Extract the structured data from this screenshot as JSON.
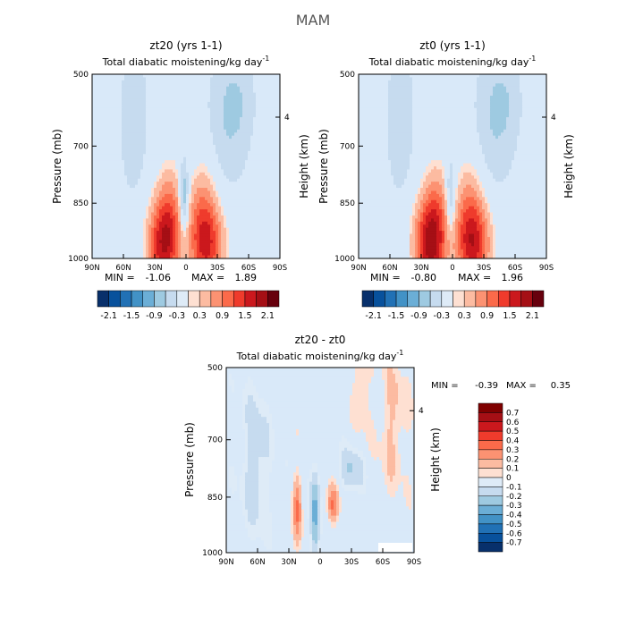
{
  "figure": {
    "title": "MAM",
    "colors": {
      "main_scale": [
        "#08306b",
        "#08519c",
        "#2171b5",
        "#4292c6",
        "#6baed6",
        "#9ecae1",
        "#c6dbef",
        "#deebf7",
        "#fee0d2",
        "#fcbba1",
        "#fc9272",
        "#fb6a4a",
        "#ef3b2c",
        "#cb181d",
        "#a50f15",
        "#67000d"
      ],
      "diff_scale": [
        "#08306b",
        "#08519c",
        "#2171b5",
        "#4292c6",
        "#6baed6",
        "#9ecae1",
        "#c6dbef",
        "#deebf7",
        "#fee0d2",
        "#fcbba1",
        "#fc9272",
        "#fb6a4a",
        "#ef3b2c",
        "#cb181d",
        "#a50f15",
        "#7f0000"
      ],
      "base_light_blue": "#d9e9f9"
    }
  },
  "chart_data": [
    {
      "type": "heatmap",
      "title": "zt20 (yrs 1-1)",
      "subtitle": "Total diabatic moistening/kg day",
      "subtitle_sup": "-1",
      "ylabel": "Pressure (mb)",
      "ylabel_right": "Height (km)",
      "x_ticks": [
        "90N",
        "60N",
        "30N",
        "0",
        "30S",
        "60S",
        "90S"
      ],
      "y_ticks": [
        "500",
        "700",
        "850",
        "1000"
      ],
      "y_right_ticks": [
        "4"
      ],
      "min_label": "MIN =",
      "min": "-1.06",
      "max_label": "MAX =",
      "max": "1.89",
      "colorbar_labels": [
        "-2.1",
        "-1.5",
        "-0.9",
        "-0.3",
        "0.3",
        "0.9",
        "1.5",
        "2.1"
      ],
      "features": [
        {
          "lat": 22,
          "p": 930,
          "value": 1.8
        },
        {
          "lat": -20,
          "p": 930,
          "value": 1.6
        },
        {
          "lat": 2,
          "p": 840,
          "value": -1.06
        },
        {
          "lat": -10,
          "p": 860,
          "value": 0.9
        }
      ]
    },
    {
      "type": "heatmap",
      "title": "zt0 (yrs 1-1)",
      "subtitle": "Total diabatic moistening/kg day",
      "subtitle_sup": "-1",
      "ylabel": "Pressure (mb)",
      "ylabel_right": "Height (km)",
      "x_ticks": [
        "90N",
        "60N",
        "30N",
        "0",
        "30S",
        "60S",
        "90S"
      ],
      "y_ticks": [
        "500",
        "700",
        "850",
        "1000"
      ],
      "y_right_ticks": [
        "4"
      ],
      "min_label": "MIN =",
      "min": "-0.80",
      "max_label": "MAX =",
      "max": "1.96",
      "colorbar_labels": [
        "-2.1",
        "-1.5",
        "-0.9",
        "-0.3",
        "0.3",
        "0.9",
        "1.5",
        "2.1"
      ],
      "features": [
        {
          "lat": 22,
          "p": 930,
          "value": 1.96
        },
        {
          "lat": -20,
          "p": 930,
          "value": 1.7
        },
        {
          "lat": 2,
          "p": 840,
          "value": -0.8
        }
      ]
    },
    {
      "type": "heatmap",
      "title": "zt20 - zt0",
      "subtitle": "Total diabatic moistening/kg day",
      "subtitle_sup": "-1",
      "ylabel": "Pressure (mb)",
      "ylabel_right": "Height (km)",
      "x_ticks": [
        "90N",
        "60N",
        "30N",
        "0",
        "30S",
        "60S",
        "90S"
      ],
      "y_ticks": [
        "500",
        "700",
        "850",
        "1000"
      ],
      "y_right_ticks": [
        "4"
      ],
      "min_label": "MIN =",
      "min": "-0.39",
      "max_label": "MAX =",
      "max": "0.35",
      "colorbar_labels": [
        "0.7",
        "0.6",
        "0.5",
        "0.4",
        "0.3",
        "0.2",
        "0.1",
        "0",
        "-0.1",
        "-0.2",
        "-0.3",
        "-0.4",
        "-0.5",
        "-0.6",
        "-0.7"
      ],
      "features": [
        {
          "lat": 22,
          "p": 880,
          "value": 0.35
        },
        {
          "lat": -12,
          "p": 870,
          "value": 0.3
        },
        {
          "lat": 5,
          "p": 900,
          "value": -0.39
        }
      ]
    }
  ]
}
